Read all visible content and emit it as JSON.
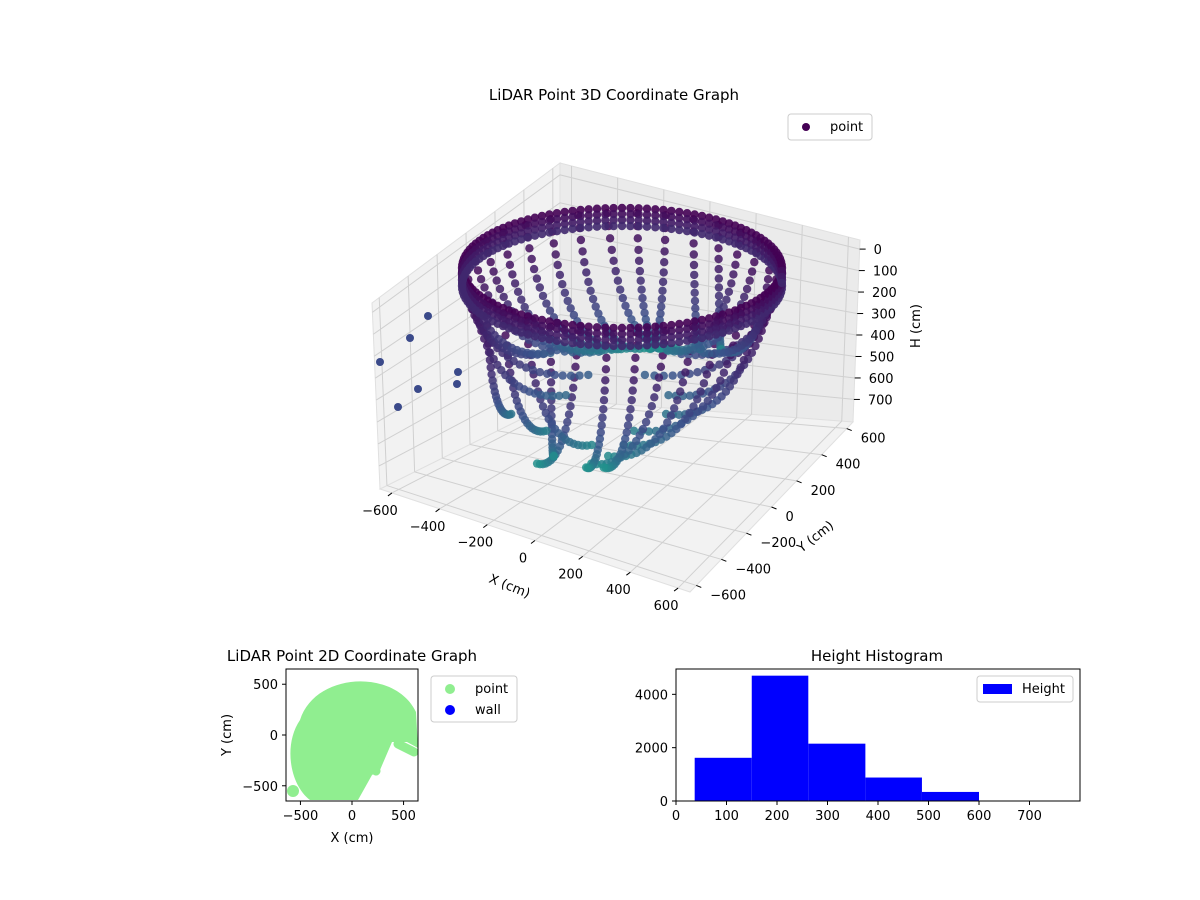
{
  "colors": {
    "point_3d_dark": "#440154",
    "point_3d_mid": "#3b528b",
    "point_3d_teal": "#21918c",
    "point_2d": "#90ee90",
    "wall_2d": "#0000ff",
    "histogram": "#0000ff"
  },
  "chart_data": [
    {
      "type": "scatter",
      "projection": "3d",
      "title": "LiDAR Point 3D Coordinate Graph",
      "xlabel": "X (cm)",
      "ylabel": "Y (cm)",
      "zlabel": "H (cm)",
      "x_ticks": [
        "−600",
        "−400",
        "−200",
        "0",
        "200",
        "400",
        "600"
      ],
      "y_ticks": [
        "−600",
        "−400",
        "−200",
        "0",
        "200",
        "400",
        "600"
      ],
      "z_ticks": [
        "0",
        "100",
        "200",
        "300",
        "400",
        "500",
        "600",
        "700"
      ],
      "z_inverted": true,
      "grid": true,
      "legend": {
        "position": "top-right",
        "entries": [
          "point"
        ]
      },
      "series": [
        {
          "name": "point",
          "color_map": "viridis",
          "shape": "ring of arcs hanging from H≈0 at radius ≈500 cm, curving inward toward H≈600–700 cm near the center"
        }
      ]
    },
    {
      "type": "scatter",
      "title": "LiDAR Point 2D Coordinate Graph",
      "xlabel": "X (cm)",
      "ylabel": "Y (cm)",
      "x_ticks": [
        "−500",
        "0",
        "500"
      ],
      "y_ticks": [
        "500",
        "0",
        "−500"
      ],
      "xlim": [
        -640,
        640
      ],
      "ylim": [
        -650,
        650
      ],
      "legend": {
        "position": "outside-right",
        "entries": [
          "point",
          "wall"
        ]
      },
      "series": [
        {
          "name": "point",
          "color": "#90ee90",
          "shape": "filled disc of radius ≈600 cm with notch on the lower right"
        },
        {
          "name": "wall",
          "color": "#0000ff",
          "points": []
        }
      ]
    },
    {
      "type": "bar",
      "subtype": "histogram",
      "title": "Height Histogram",
      "xlabel": "",
      "ylabel": "",
      "bin_edges": [
        37,
        150,
        262,
        375,
        487,
        600
      ],
      "values": [
        1620,
        4700,
        2150,
        880,
        340
      ],
      "xlim": [
        0,
        800
      ],
      "ylim": [
        0,
        4950
      ],
      "x_ticks": [
        "0",
        "100",
        "200",
        "300",
        "400",
        "500",
        "600",
        "700"
      ],
      "y_ticks": [
        "0",
        "2000",
        "4000"
      ],
      "legend": {
        "position": "top-right",
        "entries": [
          "Height"
        ]
      },
      "series": [
        {
          "name": "Height",
          "color": "#0000ff"
        }
      ]
    }
  ]
}
